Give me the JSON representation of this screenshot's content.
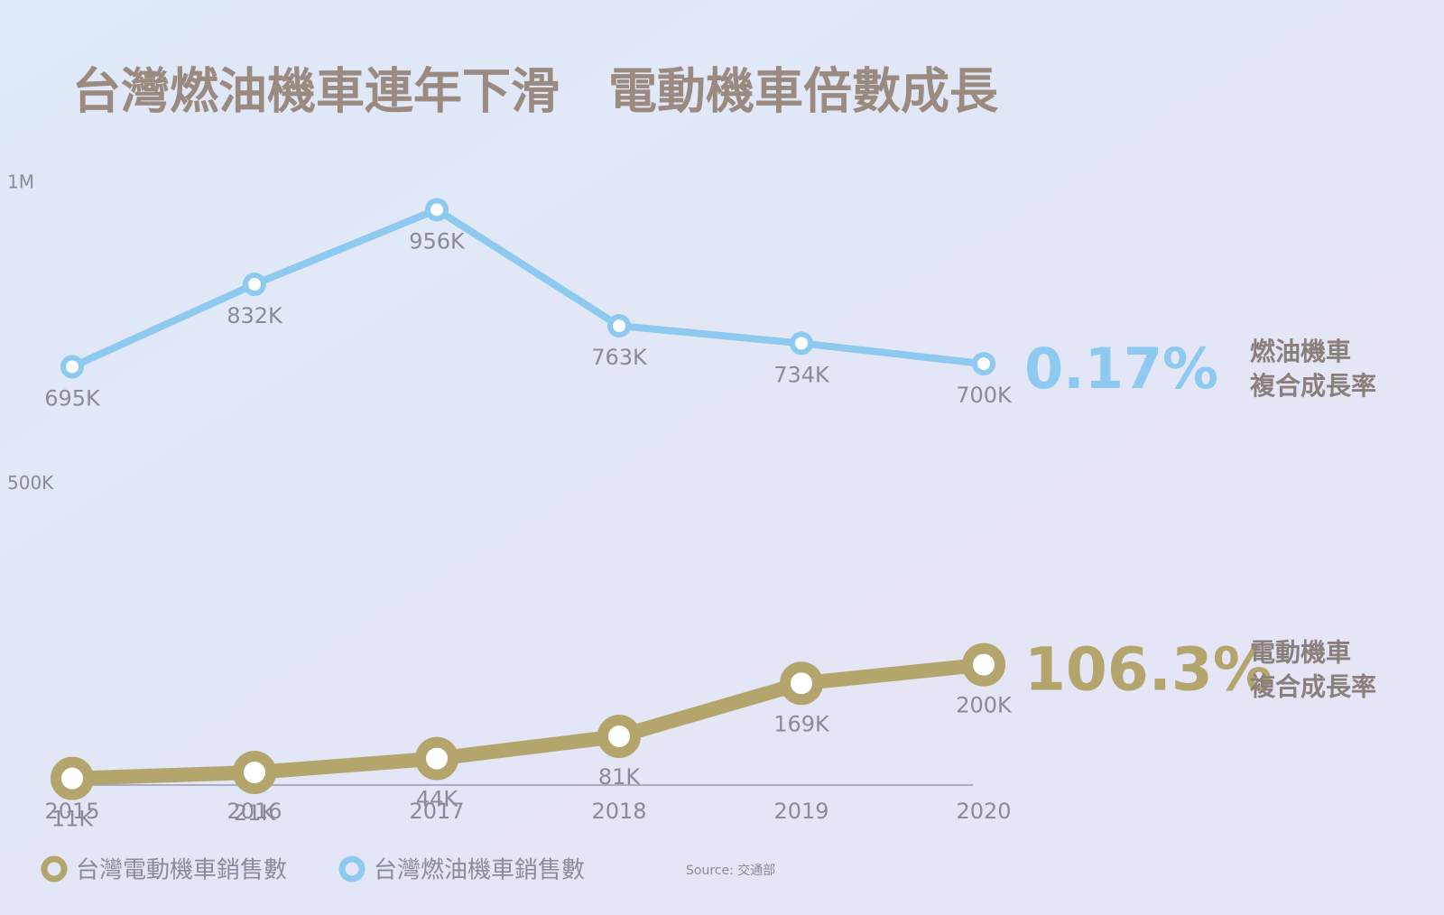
{
  "chart_data": {
    "type": "line",
    "title": "台灣燃油機車連年下滑　電動機車倍數成長",
    "categories": [
      "2015",
      "2016",
      "2017",
      "2018",
      "2019",
      "2020"
    ],
    "series": [
      {
        "name": "台灣電動機車銷售數",
        "color": "#b3a56c",
        "values": [
          11000,
          21000,
          44000,
          81000,
          169000,
          200000
        ],
        "value_labels": [
          "11K",
          "21K",
          "44K",
          "81K",
          "169K",
          "200K"
        ]
      },
      {
        "name": "台灣燃油機車銷售數",
        "color": "#8ec9f0",
        "values": [
          695000,
          832000,
          956000,
          763000,
          734000,
          700000
        ],
        "value_labels": [
          "695K",
          "832K",
          "956K",
          "763K",
          "734K",
          "700K"
        ]
      }
    ],
    "ylim": [
      0,
      1000000
    ],
    "yticks": [
      {
        "value": 500000,
        "label": "500K"
      },
      {
        "value": 1000000,
        "label": "1M"
      }
    ],
    "legend": "bottom-left",
    "annotations": [
      {
        "value": "106.3%",
        "label": [
          "電動機車",
          "複合成長率"
        ]
      },
      {
        "value": "0.17%",
        "label": [
          "燃油機車",
          "複合成長率"
        ]
      }
    ],
    "source": "Source: 交通部"
  }
}
